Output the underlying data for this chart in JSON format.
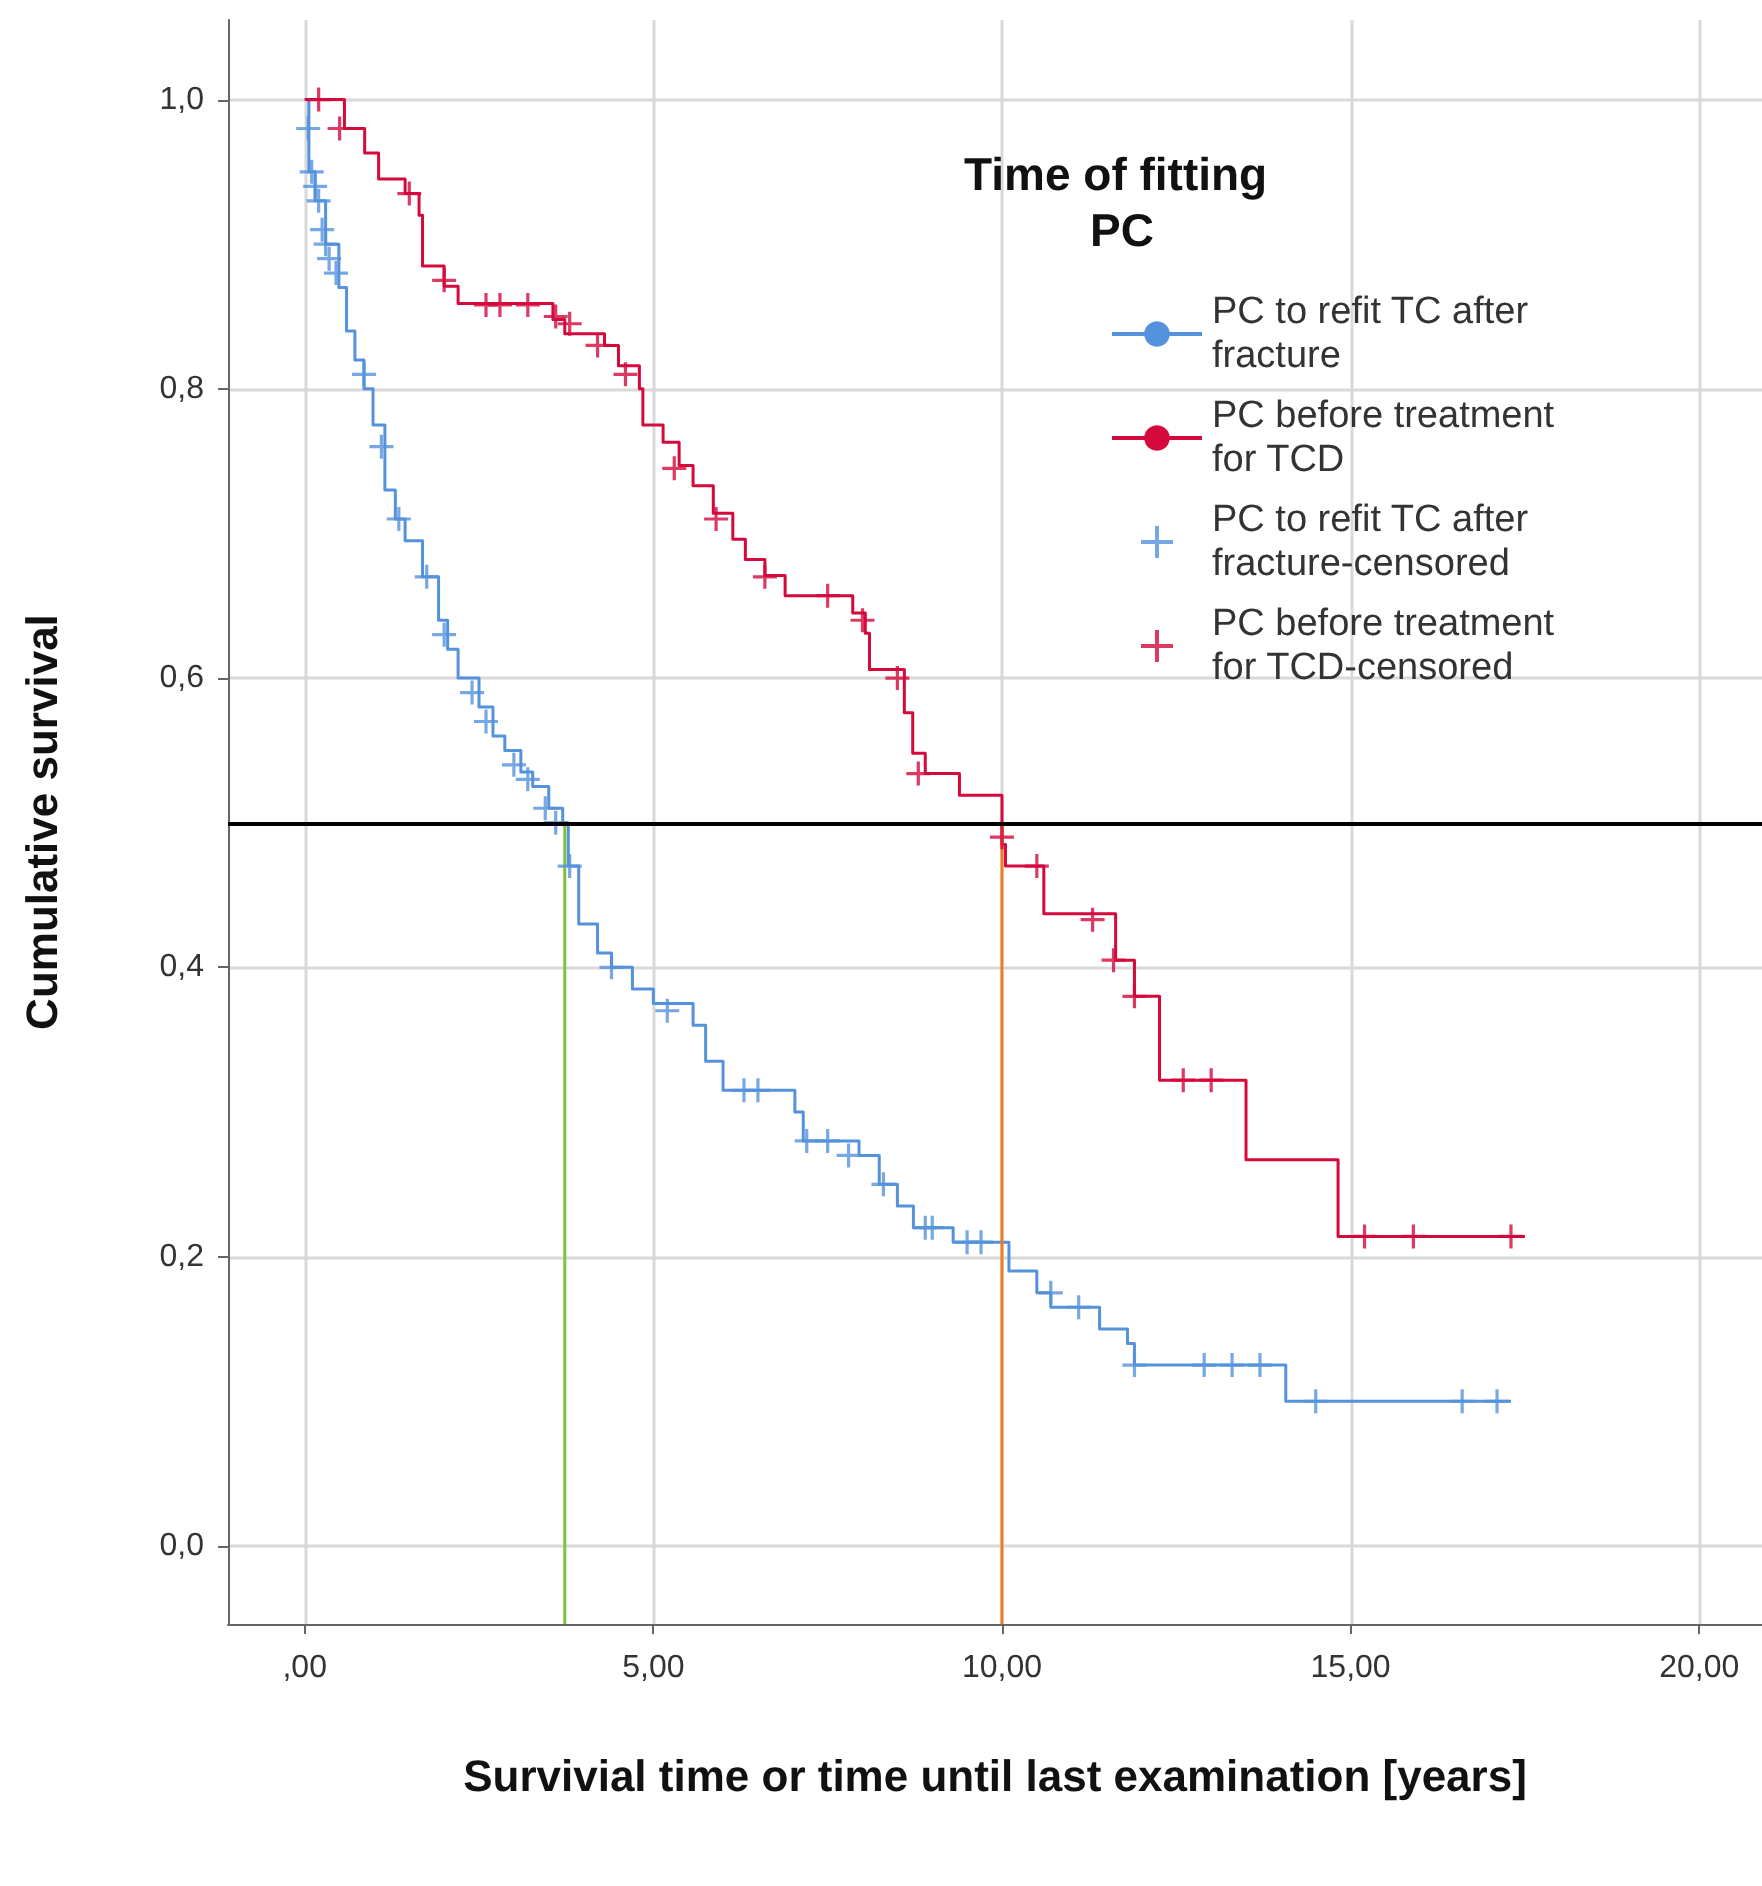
{
  "chart_data": {
    "type": "step",
    "xlabel": "Survivial time or time until last examination [years]",
    "ylabel": "Cumulative survival",
    "legend_title": "Time of fitting PC",
    "xlim": [
      -1.1,
      20.9
    ],
    "xticks": [
      {
        "value": 0,
        "label": ",00"
      },
      {
        "value": 5,
        "label": "5,00"
      },
      {
        "value": 10,
        "label": "10,00"
      },
      {
        "value": 15,
        "label": "15,00"
      },
      {
        "value": 20,
        "label": "20,00"
      }
    ],
    "ylim": [
      -0.054,
      1.055
    ],
    "yticks": [
      {
        "value": 0,
        "label": "0,0"
      },
      {
        "value": 0.2,
        "label": "0,2"
      },
      {
        "value": 0.4,
        "label": "0,4"
      },
      {
        "value": 0.6,
        "label": "0,6"
      },
      {
        "value": 0.8,
        "label": "0,8"
      },
      {
        "value": 1,
        "label": "1,0"
      }
    ],
    "grid": true,
    "legend": "top right",
    "ref_lines": [
      {
        "axis": "y",
        "value": 0.5,
        "color": "#000000"
      }
    ],
    "series": [
      {
        "name": "PC to refit TC after fracture",
        "color": "#5592dc",
        "x": [
          0,
          0.06,
          0.15,
          0.3,
          0.49,
          0.6,
          0.72,
          0.85,
          0.98,
          1.15,
          1.3,
          1.44,
          1.69,
          1.92,
          2.05,
          2.2,
          2.5,
          2.7,
          2.87,
          3.1,
          3.27,
          3.5,
          3.7,
          3.78,
          3.93,
          4.2,
          4.4,
          4.7,
          5.0,
          5.57,
          5.75,
          6.0,
          7.03,
          7.15,
          7.95,
          8.24,
          8.5,
          8.73,
          9.3,
          10.1,
          10.5,
          10.7,
          11.4,
          11.8,
          11.9,
          14.07,
          17.3
        ],
        "values": [
          1.0,
          0.95,
          0.93,
          0.9,
          0.87,
          0.84,
          0.82,
          0.8,
          0.775,
          0.73,
          0.71,
          0.695,
          0.67,
          0.64,
          0.62,
          0.6,
          0.58,
          0.56,
          0.55,
          0.535,
          0.525,
          0.51,
          0.5,
          0.47,
          0.43,
          0.41,
          0.4,
          0.385,
          0.375,
          0.36,
          0.335,
          0.315,
          0.3,
          0.28,
          0.27,
          0.25,
          0.235,
          0.22,
          0.21,
          0.19,
          0.175,
          0.165,
          0.15,
          0.14,
          0.125,
          0.1,
          0.1
        ]
      },
      {
        "name": "PC before treatment for TCD",
        "color": "#d5093c",
        "x": [
          0,
          0.57,
          0.86,
          1.06,
          1.44,
          1.64,
          1.69,
          2.0,
          2.2,
          3.56,
          3.73,
          4.3,
          4.5,
          4.8,
          4.85,
          5.14,
          5.37,
          5.57,
          5.86,
          6.14,
          6.32,
          6.6,
          6.89,
          7.86,
          8.04,
          8.1,
          8.6,
          8.72,
          8.9,
          9.39,
          10.0,
          10.05,
          10.6,
          11.63,
          11.9,
          12.26,
          13.5,
          14.82,
          17.5
        ],
        "values": [
          1.0,
          0.98,
          0.963,
          0.945,
          0.935,
          0.92,
          0.885,
          0.871,
          0.859,
          0.848,
          0.838,
          0.83,
          0.816,
          0.8,
          0.775,
          0.763,
          0.747,
          0.733,
          0.714,
          0.696,
          0.682,
          0.671,
          0.657,
          0.645,
          0.631,
          0.606,
          0.576,
          0.548,
          0.534,
          0.519,
          0.485,
          0.47,
          0.437,
          0.405,
          0.38,
          0.322,
          0.267,
          0.214,
          0.214
        ]
      },
      {
        "name": "PC to refit TC after fracture-censored",
        "type": "scatter",
        "marker": "cross",
        "color": "#5592dc",
        "x": [
          0.05,
          0.1,
          0.15,
          0.2,
          0.25,
          0.3,
          0.35,
          0.45,
          0.85,
          1.1,
          1.35,
          1.75,
          2.0,
          2.4,
          2.6,
          3.0,
          3.2,
          3.45,
          3.6,
          3.8,
          4.4,
          5.2,
          6.3,
          6.5,
          7.2,
          7.5,
          7.8,
          8.3,
          8.9,
          9.0,
          9.5,
          9.7,
          10.7,
          11.1,
          11.9,
          12.9,
          13.3,
          13.7,
          14.5,
          16.6,
          17.1
        ],
        "values": [
          0.98,
          0.95,
          0.94,
          0.93,
          0.91,
          0.9,
          0.89,
          0.88,
          0.81,
          0.76,
          0.71,
          0.67,
          0.63,
          0.59,
          0.57,
          0.54,
          0.53,
          0.51,
          0.5,
          0.47,
          0.4,
          0.37,
          0.315,
          0.315,
          0.28,
          0.28,
          0.27,
          0.25,
          0.22,
          0.22,
          0.21,
          0.21,
          0.175,
          0.165,
          0.125,
          0.125,
          0.125,
          0.125,
          0.1,
          0.1,
          0.1
        ]
      },
      {
        "name": "PC before treatment for TCD-censored",
        "type": "scatter",
        "marker": "cross",
        "color": "#d5093c",
        "x": [
          0.2,
          0.5,
          1.5,
          2.0,
          2.6,
          2.8,
          3.2,
          3.6,
          3.8,
          4.2,
          4.6,
          5.3,
          5.9,
          6.6,
          7.5,
          8.0,
          8.5,
          8.8,
          10.0,
          10.5,
          11.3,
          11.6,
          11.9,
          12.6,
          13.0,
          15.2,
          15.9,
          17.3
        ],
        "values": [
          1.0,
          0.98,
          0.935,
          0.875,
          0.858,
          0.858,
          0.858,
          0.85,
          0.845,
          0.83,
          0.81,
          0.745,
          0.71,
          0.67,
          0.657,
          0.64,
          0.6,
          0.534,
          0.49,
          0.47,
          0.433,
          0.405,
          0.38,
          0.322,
          0.322,
          0.214,
          0.214,
          0.214
        ]
      },
      {
        "type": "line",
        "color": "#7dc13f",
        "x": [
          3.73,
          3.73
        ],
        "values": [
          -0.054,
          0.5
        ]
      },
      {
        "type": "line",
        "color": "#ef7d22",
        "x": [
          10.0,
          10.0
        ],
        "values": [
          -0.054,
          0.5
        ]
      }
    ]
  }
}
